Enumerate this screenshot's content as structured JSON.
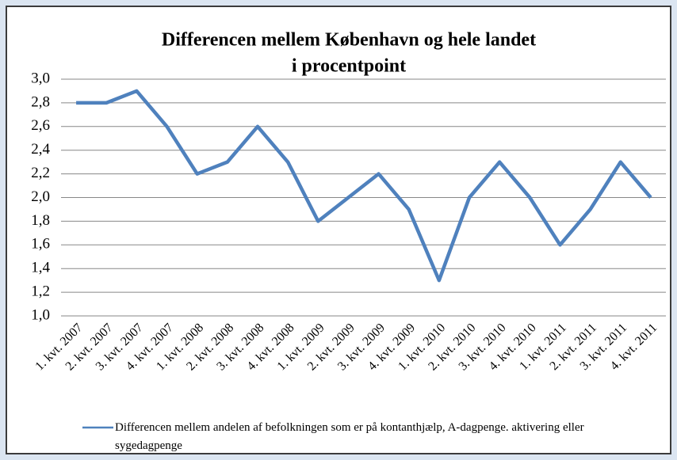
{
  "chart_data": {
    "type": "line",
    "title": "Differencen mellem København og hele landet",
    "subtitle": "i procentpoint",
    "categories": [
      "1. kvt. 2007",
      "2. kvt. 2007",
      "3. kvt. 2007",
      "4. kvt. 2007",
      "1. kvt. 2008",
      "2. kvt. 2008",
      "3. kvt. 2008",
      "4. kvt. 2008",
      "1. kvt. 2009",
      "2. kvt. 2009",
      "3. kvt. 2009",
      "4. kvt. 2009",
      "1. kvt. 2010",
      "2. kvt. 2010",
      "3. kvt. 2010",
      "4. kvt. 2010",
      "1. kvt. 2011",
      "2. kvt. 2011",
      "3. kvt. 2011",
      "4. kvt. 2011"
    ],
    "series": [
      {
        "name": "Differencen mellem andelen af befolkningen som er på kontanthjælp, A-dagpenge. aktivering eller sygedagpenge",
        "color": "#4f81bd",
        "values": [
          2.8,
          2.8,
          2.9,
          2.6,
          2.2,
          2.3,
          2.6,
          2.3,
          1.8,
          2.0,
          2.2,
          1.9,
          1.3,
          2.0,
          2.3,
          2.0,
          1.6,
          1.9,
          2.3,
          2.0
        ]
      }
    ],
    "ylim": [
      1.0,
      3.0
    ],
    "yticks": [
      {
        "value": 1.0,
        "label": "1,0"
      },
      {
        "value": 1.2,
        "label": "1,2"
      },
      {
        "value": 1.4,
        "label": "1,4"
      },
      {
        "value": 1.6,
        "label": "1,6"
      },
      {
        "value": 1.8,
        "label": "1,8"
      },
      {
        "value": 2.0,
        "label": "2,0"
      },
      {
        "value": 2.2,
        "label": "2,2"
      },
      {
        "value": 2.4,
        "label": "2,4"
      },
      {
        "value": 2.6,
        "label": "2,6"
      },
      {
        "value": 2.8,
        "label": "2,8"
      },
      {
        "value": 3.0,
        "label": "3,0"
      }
    ],
    "grid": true
  }
}
